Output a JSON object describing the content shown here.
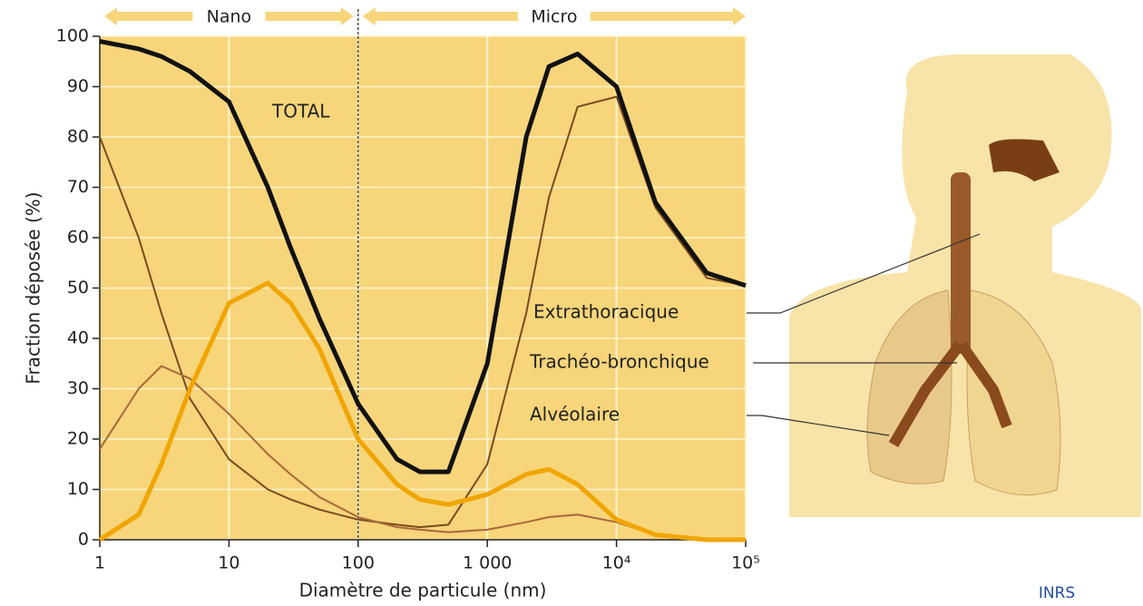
{
  "chart_data": {
    "type": "line",
    "xlabel": "Diamètre de particule (nm)",
    "ylabel": "Fraction déposée (%)",
    "log_x": true,
    "x": [
      1,
      2,
      3,
      5,
      10,
      20,
      30,
      50,
      100,
      200,
      300,
      500,
      1000,
      2000,
      3000,
      5000,
      10000,
      20000,
      50000,
      100000
    ],
    "series": [
      {
        "name": "TOTAL",
        "color": "#111111",
        "width": 5,
        "values": [
          99,
          97.5,
          96,
          93,
          87,
          70,
          58,
          44,
          27,
          16,
          13.5,
          13.5,
          35,
          80,
          94,
          96.5,
          90,
          67,
          53,
          50.5
        ]
      },
      {
        "name": "Extrathoracique",
        "color": "#7a4a1e",
        "width": 2,
        "values": [
          80,
          60,
          45,
          28,
          16,
          10,
          8,
          6,
          4,
          3,
          2.5,
          3,
          15,
          45,
          68,
          86,
          88,
          66,
          52,
          50.5
        ]
      },
      {
        "name": "Trachéo-bronchique",
        "color": "#a8683a",
        "width": 2,
        "values": [
          18,
          30,
          34.5,
          32,
          25,
          17,
          13,
          8.5,
          4.5,
          2.5,
          2,
          1.5,
          2,
          3.5,
          4.5,
          5,
          3.5,
          1,
          0,
          0
        ]
      },
      {
        "name": "Alvéolaire",
        "color": "#f0a500",
        "width": 5,
        "values": [
          0,
          5,
          15,
          30,
          47,
          51,
          47,
          38,
          20,
          11,
          8,
          7,
          9,
          13,
          14,
          11,
          4,
          1,
          0,
          0
        ]
      }
    ],
    "xlim": [
      1,
      100000
    ],
    "ylim": [
      0,
      100
    ],
    "xticks": [
      1,
      10,
      100,
      {
        "value": 1000,
        "label": "1 000"
      },
      {
        "value": 10000,
        "label": "10⁴"
      },
      {
        "value": 100000,
        "label": "10⁵"
      }
    ],
    "yticks": [
      0,
      10,
      20,
      30,
      40,
      50,
      60,
      70,
      80,
      90,
      100
    ],
    "grid": true,
    "region_labels": [
      "Nano",
      "Micro"
    ],
    "region_divider": 100,
    "source": "INRS"
  }
}
